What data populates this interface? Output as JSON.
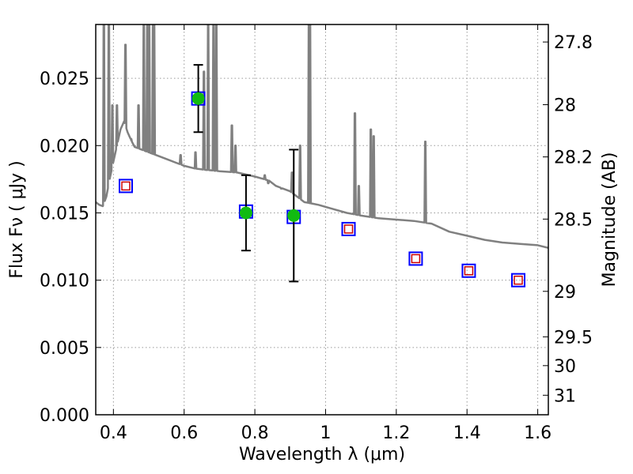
{
  "chart_data": {
    "type": "scatter",
    "title": "",
    "xlabel": "Wavelength  λ (μm)",
    "ylabel": "Flux  Fν  ( μJy )",
    "y2label": "Magnitude (AB)",
    "xlim": [
      0.35,
      1.63
    ],
    "ylim": [
      0.0,
      0.029
    ],
    "grid": true,
    "x_ticks": [
      0.4,
      0.6,
      0.8,
      1.0,
      1.2,
      1.4,
      1.6
    ],
    "x_tick_labels": [
      "0.4",
      "0.6",
      "0.8",
      "1",
      "1.2",
      "1.4",
      "1.6"
    ],
    "y_ticks": [
      0.0,
      0.005,
      0.01,
      0.015,
      0.02,
      0.025
    ],
    "y_tick_labels": [
      "0.000",
      "0.005",
      "0.010",
      "0.015",
      "0.020",
      "0.025"
    ],
    "y2_ticks": [
      {
        "label": "27.8",
        "flux": 0.0277
      },
      {
        "label": "28",
        "flux": 0.02304
      },
      {
        "label": "28.2",
        "flux": 0.01916
      },
      {
        "label": "28.5",
        "flux": 0.01454
      },
      {
        "label": "29",
        "flux": 0.00917
      },
      {
        "label": "29.5",
        "flux": 0.00579
      },
      {
        "label": "30",
        "flux": 0.00365
      },
      {
        "label": "31",
        "flux": 0.00145
      }
    ],
    "colors": {
      "model": "#808080",
      "box": "#0000ff",
      "model_flux": "#cc0000",
      "detection": "#11bb11",
      "errorbar": "#000000",
      "grid": "#999999"
    },
    "series": [
      {
        "kind": "model-spectrum",
        "continuum": [
          [
            0.35,
            0.0158
          ],
          [
            0.36,
            0.0156
          ],
          [
            0.37,
            0.0155
          ],
          [
            0.38,
            0.0162
          ],
          [
            0.39,
            0.0176
          ],
          [
            0.4,
            0.0188
          ],
          [
            0.41,
            0.02
          ],
          [
            0.42,
            0.0212
          ],
          [
            0.43,
            0.0218
          ],
          [
            0.44,
            0.021
          ],
          [
            0.45,
            0.0204
          ],
          [
            0.46,
            0.0199
          ],
          [
            0.48,
            0.0197
          ],
          [
            0.5,
            0.0195
          ],
          [
            0.52,
            0.0193
          ],
          [
            0.55,
            0.019
          ],
          [
            0.58,
            0.0187
          ],
          [
            0.6,
            0.0185
          ],
          [
            0.63,
            0.0183
          ],
          [
            0.66,
            0.0182
          ],
          [
            0.7,
            0.0181
          ],
          [
            0.75,
            0.018
          ],
          [
            0.8,
            0.0177
          ],
          [
            0.84,
            0.0174
          ],
          [
            0.86,
            0.017
          ],
          [
            0.88,
            0.0168
          ],
          [
            0.9,
            0.0166
          ],
          [
            0.92,
            0.0162
          ],
          [
            0.94,
            0.0158
          ],
          [
            0.98,
            0.0156
          ],
          [
            1.02,
            0.0153
          ],
          [
            1.06,
            0.015
          ],
          [
            1.1,
            0.0148
          ],
          [
            1.15,
            0.0146
          ],
          [
            1.2,
            0.0145
          ],
          [
            1.25,
            0.0144
          ],
          [
            1.3,
            0.0142
          ],
          [
            1.35,
            0.0136
          ],
          [
            1.4,
            0.0133
          ],
          [
            1.45,
            0.013
          ],
          [
            1.5,
            0.0128
          ],
          [
            1.55,
            0.0127
          ],
          [
            1.6,
            0.0126
          ],
          [
            1.63,
            0.0124
          ]
        ],
        "emission_lines": [
          {
            "x": 0.373,
            "peak": 0.029
          },
          {
            "x": 0.387,
            "peak": 0.029
          },
          {
            "x": 0.397,
            "peak": 0.023
          },
          {
            "x": 0.41,
            "peak": 0.023
          },
          {
            "x": 0.434,
            "peak": 0.0275
          },
          {
            "x": 0.45,
            "peak": 0.0205
          },
          {
            "x": 0.471,
            "peak": 0.023
          },
          {
            "x": 0.486,
            "peak": 0.029
          },
          {
            "x": 0.496,
            "peak": 0.029
          },
          {
            "x": 0.501,
            "peak": 0.029
          },
          {
            "x": 0.512,
            "peak": 0.029
          },
          {
            "x": 0.515,
            "peak": 0.029
          },
          {
            "x": 0.59,
            "peak": 0.0193
          },
          {
            "x": 0.632,
            "peak": 0.0195
          },
          {
            "x": 0.656,
            "peak": 0.0255
          },
          {
            "x": 0.668,
            "peak": 0.029
          },
          {
            "x": 0.683,
            "peak": 0.029
          },
          {
            "x": 0.691,
            "peak": 0.029
          },
          {
            "x": 0.735,
            "peak": 0.0215
          },
          {
            "x": 0.745,
            "peak": 0.02
          },
          {
            "x": 0.828,
            "peak": 0.0178
          },
          {
            "x": 0.838,
            "peak": 0.0172
          },
          {
            "x": 0.86,
            "peak": 0.017
          },
          {
            "x": 0.875,
            "peak": 0.0168
          },
          {
            "x": 0.905,
            "peak": 0.018
          },
          {
            "x": 0.928,
            "peak": 0.02
          },
          {
            "x": 0.953,
            "peak": 0.029
          },
          {
            "x": 0.956,
            "peak": 0.029
          },
          {
            "x": 1.083,
            "peak": 0.0224
          },
          {
            "x": 1.094,
            "peak": 0.017
          },
          {
            "x": 1.128,
            "peak": 0.0212
          },
          {
            "x": 1.136,
            "peak": 0.0207
          },
          {
            "x": 1.282,
            "peak": 0.0203
          }
        ]
      },
      {
        "kind": "photometry",
        "points": [
          {
            "x": 0.435,
            "model": 0.017,
            "detected": false
          },
          {
            "x": 0.64,
            "model": 0.0235,
            "detected": true,
            "flux": 0.0235,
            "err": 0.0025
          },
          {
            "x": 0.775,
            "model": 0.0151,
            "detected": true,
            "flux": 0.015,
            "err": 0.0028
          },
          {
            "x": 0.91,
            "model": 0.0147,
            "detected": true,
            "flux": 0.0148,
            "err": 0.0049
          },
          {
            "x": 1.065,
            "model": 0.0138,
            "detected": false
          },
          {
            "x": 1.255,
            "model": 0.0116,
            "detected": false
          },
          {
            "x": 1.405,
            "model": 0.0107,
            "detected": false
          },
          {
            "x": 1.545,
            "model": 0.01,
            "detected": false
          }
        ]
      }
    ]
  }
}
